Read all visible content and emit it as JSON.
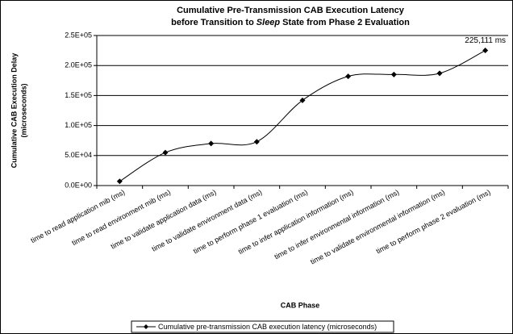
{
  "chart_data": {
    "type": "line",
    "title": {
      "line1": "Cumulative Pre-Transmission CAB Execution Latency",
      "line2_before": "before Transition to",
      "line2_emphasis": "Sleep",
      "line2_after": "State from Phase 2 Evaluation"
    },
    "y_label": [
      "Cumulative CAB Execution Delay",
      "(microseconds)"
    ],
    "x_label": "CAB Phase",
    "categories": [
      "time to read application mib (ms)",
      "time to read environment mib (ms)",
      "time to validate application data (ms)",
      "time to validate environment data (ms)",
      "time to perform phase 1 evaluation (ms)",
      "time to infer application information (ms)",
      "time to infer environmental information (ms)",
      "time to validate environmental information (ms)",
      "time to perform phase 2 evaluation (ms)"
    ],
    "series": [
      {
        "name": "Cumulative pre-transmission CAB execution latency (microseconds)",
        "color": "#000000",
        "values": [
          7000,
          55000,
          70000,
          73000,
          142000,
          182000,
          185000,
          187000,
          225111
        ],
        "value_labels": [
          null,
          null,
          null,
          null,
          null,
          null,
          null,
          null,
          "225,111 ms"
        ]
      }
    ],
    "ylim": [
      0,
      250000
    ],
    "yticks": [
      {
        "value": 0,
        "label": "0.0E+00"
      },
      {
        "value": 50000,
        "label": "5.0E+04"
      },
      {
        "value": 100000,
        "label": "1.0E+05"
      },
      {
        "value": 150000,
        "label": "1.5E+05"
      },
      {
        "value": 200000,
        "label": "2.0E+05"
      },
      {
        "value": 250000,
        "label": "2.5E+05"
      }
    ],
    "grid": true,
    "legend": "bottom"
  }
}
